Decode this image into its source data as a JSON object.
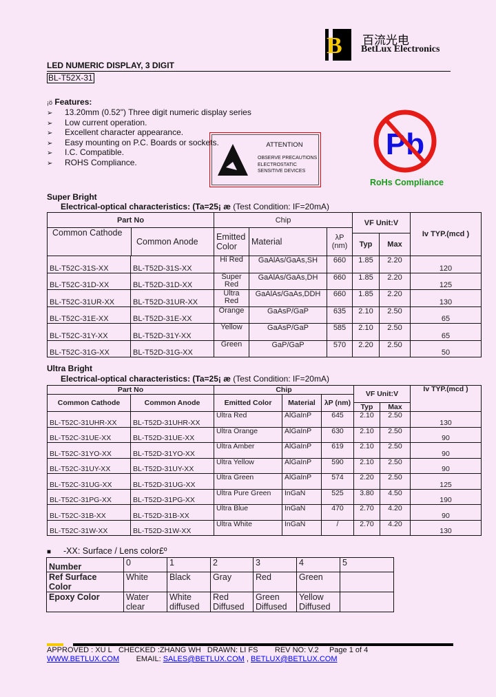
{
  "header": {
    "logo_cn": "百流光电",
    "logo_en": "BetLux Electronics",
    "title": "LED NUMERIC DISPLAY, 3 DIGIT",
    "part": "BL-T52X-31"
  },
  "features": {
    "heading_prefix": "¡ö",
    "heading": "Features:",
    "bullet": "➢",
    "items": [
      "13.20mm (0.52\") Three digit numeric display series",
      "Low current operation.",
      "Excellent character appearance.",
      "Easy mounting on P.C. Boards or sockets.",
      "I.C. Compatible.",
      "ROHS Compliance."
    ]
  },
  "attention": {
    "title": "ATTENTION",
    "lines": [
      "OBSERVE PRECAUTIONS",
      "ELECTROSTATIC",
      "SENSITIVE DEVICES"
    ]
  },
  "rohs": {
    "symbol": "Pb",
    "label": "RoHs Compliance"
  },
  "super": {
    "section": "Super Bright",
    "subtitle_bold": "Electrical-optical characteristics: (Ta=25¡ æ",
    "subtitle": " (Test Condition: IF=20mA)",
    "h": {
      "part": "Part No",
      "chip": "Chip",
      "vf": "VF Unit:V",
      "iv": "Iv TYP.(mcd )",
      "cc": "Common Cathode",
      "ca": "Common Anode",
      "color": "Emitted Color",
      "material": "Material",
      "lp": "λP (nm)",
      "typ": "Typ",
      "max": "Max"
    },
    "rows": [
      [
        "BL-T52C-31S-XX",
        "BL-T52D-31S-XX",
        "Hi Red",
        "GaAlAs/GaAs,SH",
        "660",
        "1.85",
        "2.20",
        "120"
      ],
      [
        "BL-T52C-31D-XX",
        "BL-T52D-31D-XX",
        "Super Red",
        "GaAlAs/GaAs,DH",
        "660",
        "1.85",
        "2.20",
        "125"
      ],
      [
        "BL-T52C-31UR-XX",
        "BL-T52D-31UR-XX",
        "Ultra Red",
        "GaAlAs/GaAs,DDH",
        "660",
        "1.85",
        "2.20",
        "130"
      ],
      [
        "BL-T52C-31E-XX",
        "BL-T52D-31E-XX",
        "Orange",
        "GaAsP/GaP",
        "635",
        "2.10",
        "2.50",
        "65"
      ],
      [
        "BL-T52C-31Y-XX",
        "BL-T52D-31Y-XX",
        "Yellow",
        "GaAsP/GaP",
        "585",
        "2.10",
        "2.50",
        "65"
      ],
      [
        "BL-T52C-31G-XX",
        "BL-T52D-31G-XX",
        "Green",
        "GaP/GaP",
        "570",
        "2.20",
        "2.50",
        "50"
      ]
    ]
  },
  "ultra": {
    "section": "Ultra Bright",
    "subtitle_bold": "Electrical-optical characteristics: (Ta=25¡ æ",
    "subtitle": " (Test Condition: IF=20mA)",
    "h": {
      "part": "Part No",
      "chip": "Chip",
      "vf": "VF Unit:V",
      "iv": "Iv TYP.(mcd )",
      "cc": "Common Cathode",
      "ca": "Common Anode",
      "color": "Emitted Color",
      "material": "Material",
      "lp": "λP (nm)",
      "typ": "Typ",
      "max": "Max"
    },
    "rows": [
      [
        "BL-T52C-31UHR-XX",
        "BL-T52D-31UHR-XX",
        "Ultra Red",
        "AlGaInP",
        "645",
        "2.10",
        "2.50",
        "130"
      ],
      [
        "BL-T52C-31UE-XX",
        "BL-T52D-31UE-XX",
        "Ultra Orange",
        "AlGaInP",
        "630",
        "2.10",
        "2.50",
        "90"
      ],
      [
        "BL-T52C-31YO-XX",
        "BL-T52D-31YO-XX",
        "Ultra Amber",
        "AlGaInP",
        "619",
        "2.10",
        "2.50",
        "90"
      ],
      [
        "BL-T52C-31UY-XX",
        "BL-T52D-31UY-XX",
        "Ultra Yellow",
        "AlGaInP",
        "590",
        "2.10",
        "2.50",
        "90"
      ],
      [
        "BL-T52C-31UG-XX",
        "BL-T52D-31UG-XX",
        "Ultra Green",
        "AlGaInP",
        "574",
        "2.20",
        "2.50",
        "125"
      ],
      [
        "BL-T52C-31PG-XX",
        "BL-T52D-31PG-XX",
        "Ultra Pure Green",
        "InGaN",
        "525",
        "3.80",
        "4.50",
        "190"
      ],
      [
        "BL-T52C-31B-XX",
        "BL-T52D-31B-XX",
        "Ultra Blue",
        "InGaN",
        "470",
        "2.70",
        "4.20",
        "90"
      ],
      [
        "BL-T52C-31W-XX",
        "BL-T52D-31W-XX",
        "Ultra White",
        "InGaN",
        "/",
        "2.70",
        "4.20",
        "130"
      ]
    ]
  },
  "lens": {
    "bullet": "■",
    "title": "-XX: Surface / Lens color£º",
    "rows": [
      [
        "Number",
        "0",
        "1",
        "2",
        "3",
        "4",
        "5"
      ],
      [
        "Ref Surface Color",
        "White",
        "Black",
        "Gray",
        "Red",
        "Green",
        ""
      ],
      [
        "Epoxy Color",
        "Water clear",
        "White diffused",
        "Red Diffused",
        "Green Diffused",
        "Yellow Diffused",
        ""
      ]
    ]
  },
  "footer": {
    "approved": "APPROVED : XU L",
    "checked": "CHECKED :ZHANG WH",
    "drawn": "DRAWN: LI FS",
    "rev": "REV NO: V.2",
    "page": "Page 1 of 4",
    "web": "WWW.BETLUX.COM",
    "email_label": "EMAIL:",
    "email1": "SALES@BETLUX.COM",
    "sep": ",",
    "email2": "BETLUX@BETLUX.COM"
  },
  "colors": {
    "background": "#f9e7f8",
    "logo_yellow": "#f5c800",
    "rohs_red": "#e41b17",
    "pb_blue": "#1010e0",
    "rohs_green": "#1a9a1a",
    "link": "#0000ff"
  }
}
